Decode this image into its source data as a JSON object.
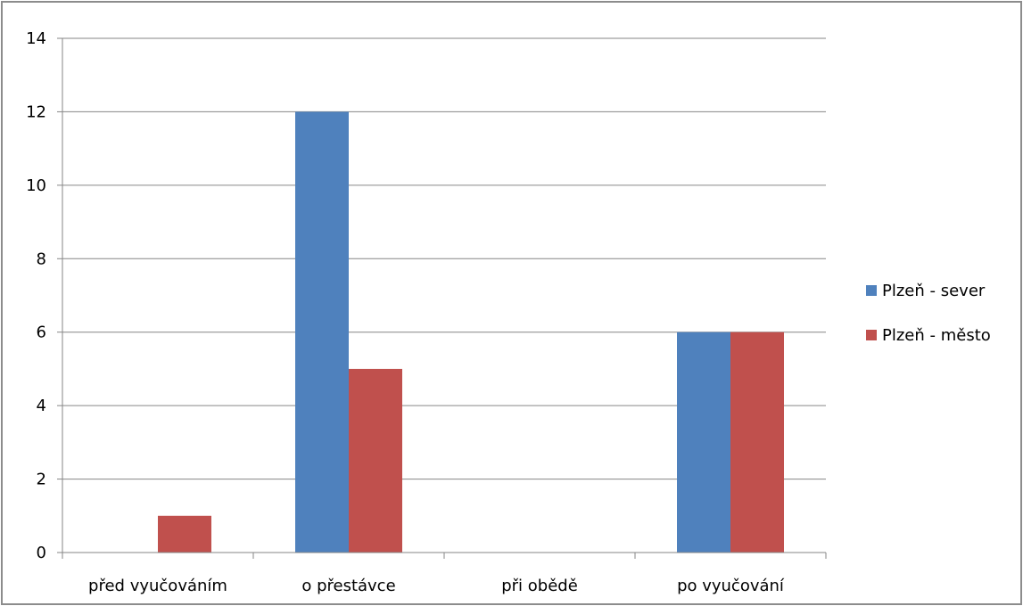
{
  "chart_data": {
    "type": "bar",
    "title": "",
    "xlabel": "",
    "ylabel": "",
    "categories": [
      "před vyučováním",
      "o přestávce",
      "při obědě",
      "po vyučování"
    ],
    "series": [
      {
        "name": "Plzeň - sever",
        "values": [
          0,
          12,
          0,
          6
        ],
        "color": "#4f81bd"
      },
      {
        "name": "Plzeň - město",
        "values": [
          1,
          5,
          0,
          6
        ],
        "color": "#c0504d"
      }
    ],
    "ylim": [
      0,
      14
    ],
    "yticks": [
      "0",
      "2",
      "4",
      "6",
      "8",
      "10",
      "12",
      "14"
    ],
    "grid": true,
    "legend_position": "right"
  }
}
